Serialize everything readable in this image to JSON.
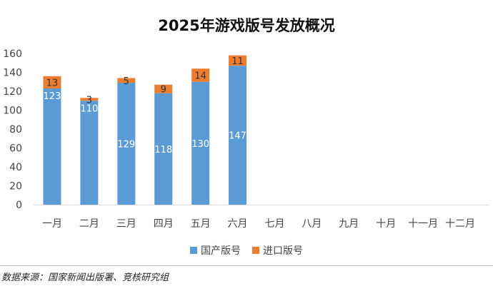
{
  "chart_data": {
    "type": "bar",
    "stacked": true,
    "title": "2025年游戏版号发放概况",
    "categories": [
      "一月",
      "二月",
      "三月",
      "四月",
      "五月",
      "六月",
      "七月",
      "八月",
      "九月",
      "十月",
      "十一月",
      "十二月"
    ],
    "series": [
      {
        "name": "国产版号",
        "color": "#5b9bd5",
        "values": [
          123,
          110,
          129,
          118,
          130,
          147,
          null,
          null,
          null,
          null,
          null,
          null
        ]
      },
      {
        "name": "进口版号",
        "color": "#ed7d31",
        "values": [
          13,
          3,
          5,
          9,
          14,
          11,
          null,
          null,
          null,
          null,
          null,
          null
        ]
      }
    ],
    "ylim": [
      0,
      160
    ],
    "yticks": [
      0,
      20,
      40,
      60,
      80,
      100,
      120,
      140,
      160
    ],
    "grid": false,
    "legend": "bottom"
  },
  "source": "数据来源：国家新闻出版署、竞核研究组"
}
